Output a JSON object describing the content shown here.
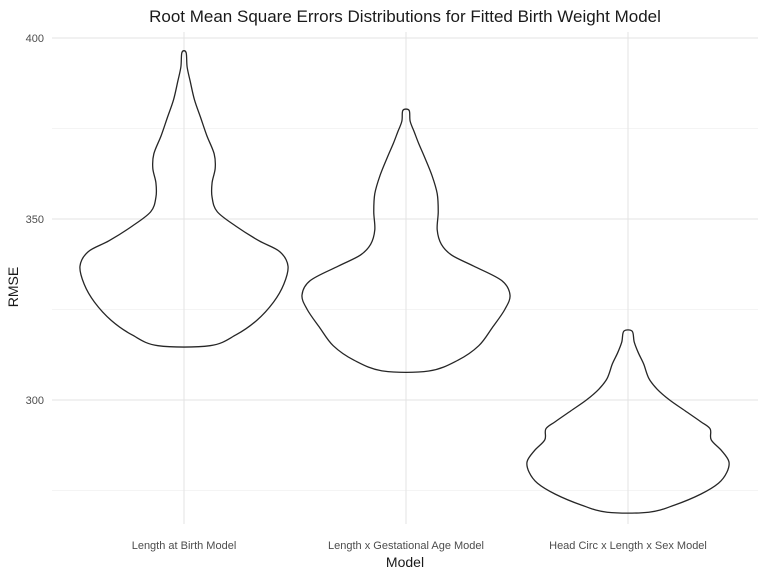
{
  "chart_data": {
    "type": "violin",
    "title": "Root Mean Square Errors Distributions for Fitted Birth Weight Model",
    "xlabel": "Model",
    "ylabel": "RMSE",
    "ylim": [
      264,
      402
    ],
    "yticks": [
      300,
      350,
      400
    ],
    "y_minor_ticks": [
      275,
      325,
      375
    ],
    "grid": true,
    "categories": [
      "Length at Birth Model",
      "Length x Gestational Age Model",
      "Head Circ x Length x Sex Model"
    ],
    "series": [
      {
        "min": 315,
        "max": 396,
        "profile": [
          [
            315,
            0.25
          ],
          [
            318,
            0.5
          ],
          [
            322,
            0.7
          ],
          [
            327,
            0.86
          ],
          [
            332,
            0.96
          ],
          [
            337,
            1.0
          ],
          [
            341,
            0.92
          ],
          [
            344,
            0.72
          ],
          [
            348,
            0.5
          ],
          [
            352,
            0.32
          ],
          [
            356,
            0.27
          ],
          [
            360,
            0.27
          ],
          [
            364,
            0.3
          ],
          [
            368,
            0.29
          ],
          [
            373,
            0.22
          ],
          [
            378,
            0.16
          ],
          [
            383,
            0.1
          ],
          [
            388,
            0.06
          ],
          [
            392,
            0.03
          ],
          [
            396,
            0.02
          ]
        ]
      },
      {
        "min": 308,
        "max": 380,
        "profile": [
          [
            308,
            0.22
          ],
          [
            311,
            0.5
          ],
          [
            315,
            0.7
          ],
          [
            320,
            0.83
          ],
          [
            325,
            0.95
          ],
          [
            329,
            1.0
          ],
          [
            333,
            0.92
          ],
          [
            337,
            0.65
          ],
          [
            340,
            0.44
          ],
          [
            343,
            0.34
          ],
          [
            347,
            0.3
          ],
          [
            352,
            0.31
          ],
          [
            357,
            0.3
          ],
          [
            362,
            0.25
          ],
          [
            367,
            0.18
          ],
          [
            371,
            0.12
          ],
          [
            374,
            0.08
          ],
          [
            377,
            0.04
          ],
          [
            380,
            0.03
          ]
        ]
      },
      {
        "min": 269,
        "max": 319,
        "profile": [
          [
            269,
            0.2
          ],
          [
            271,
            0.45
          ],
          [
            274,
            0.7
          ],
          [
            277,
            0.87
          ],
          [
            280,
            0.95
          ],
          [
            283,
            0.97
          ],
          [
            286,
            0.9
          ],
          [
            289,
            0.8
          ],
          [
            292,
            0.79
          ],
          [
            294,
            0.7
          ],
          [
            297,
            0.55
          ],
          [
            300,
            0.4
          ],
          [
            303,
            0.28
          ],
          [
            306,
            0.2
          ],
          [
            310,
            0.15
          ],
          [
            313,
            0.1
          ],
          [
            316,
            0.06
          ],
          [
            319,
            0.04
          ]
        ]
      }
    ]
  }
}
